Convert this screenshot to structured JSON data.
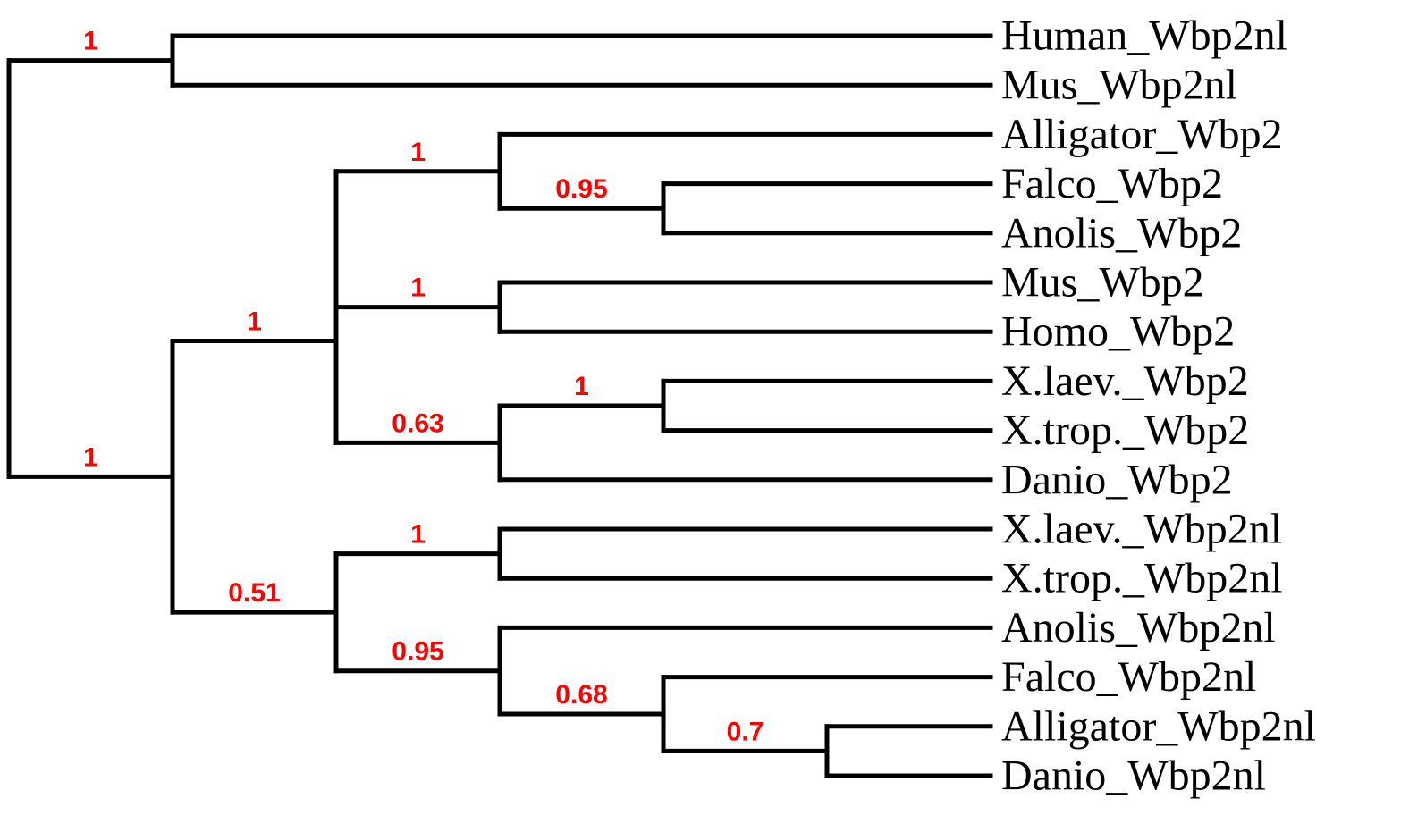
{
  "figure": {
    "type": "phylogenetic-tree",
    "orientation": "left-to-right",
    "branch_color": "#000000",
    "support_color": "#ff0000",
    "leaf_order": [
      "Human_Wbp2nl",
      "Mus_Wbp2nl",
      "Alligator_Wbp2",
      "Falco_Wbp2",
      "Anolis_Wbp2",
      "Mus_Wbp2",
      "Homo_Wbp2",
      "X.laev._Wbp2",
      "X.trop._Wbp2",
      "Danio_Wbp2",
      "X.laev._Wbp2nl",
      "X.trop._Wbp2nl",
      "Anolis_Wbp2nl",
      "Falco_Wbp2nl",
      "Alligator_Wbp2nl",
      "Danio_Wbp2nl"
    ],
    "support_values": [
      "1",
      "1",
      "1",
      "1",
      "0.95",
      "1",
      "0.63",
      "1",
      "0.51",
      "1",
      "0.95",
      "0.68",
      "0.7"
    ],
    "tree": {
      "support": null,
      "children": [
        {
          "support": "1",
          "children": [
            {
              "leaf": "Human_Wbp2nl"
            },
            {
              "leaf": "Mus_Wbp2nl"
            }
          ]
        },
        {
          "support": "1",
          "children": [
            {
              "support": "1",
              "children": [
                {
                  "support": null,
                  "zero_length": true,
                  "children": [
                    {
                      "support": "1",
                      "children": [
                        {
                          "leaf": "Alligator_Wbp2"
                        },
                        {
                          "support": "0.95",
                          "children": [
                            {
                              "leaf": "Falco_Wbp2"
                            },
                            {
                              "leaf": "Anolis_Wbp2"
                            }
                          ]
                        }
                      ]
                    },
                    {
                      "support": "1",
                      "children": [
                        {
                          "leaf": "Mus_Wbp2"
                        },
                        {
                          "leaf": "Homo_Wbp2"
                        }
                      ]
                    }
                  ]
                },
                {
                  "support": "0.63",
                  "children": [
                    {
                      "support": "1",
                      "children": [
                        {
                          "leaf": "X.laev._Wbp2"
                        },
                        {
                          "leaf": "X.trop._Wbp2"
                        }
                      ]
                    },
                    {
                      "leaf": "Danio_Wbp2"
                    }
                  ]
                }
              ]
            },
            {
              "support": "0.51",
              "children": [
                {
                  "support": "1",
                  "children": [
                    {
                      "leaf": "X.laev._Wbp2nl"
                    },
                    {
                      "leaf": "X.trop._Wbp2nl"
                    }
                  ]
                },
                {
                  "support": "0.95",
                  "children": [
                    {
                      "leaf": "Anolis_Wbp2nl"
                    },
                    {
                      "support": "0.68",
                      "children": [
                        {
                          "leaf": "Falco_Wbp2nl"
                        },
                        {
                          "support": "0.7",
                          "children": [
                            {
                              "leaf": "Alligator_Wbp2nl"
                            },
                            {
                              "leaf": "Danio_Wbp2nl"
                            }
                          ]
                        }
                      ]
                    }
                  ]
                }
              ]
            }
          ]
        }
      ]
    }
  }
}
